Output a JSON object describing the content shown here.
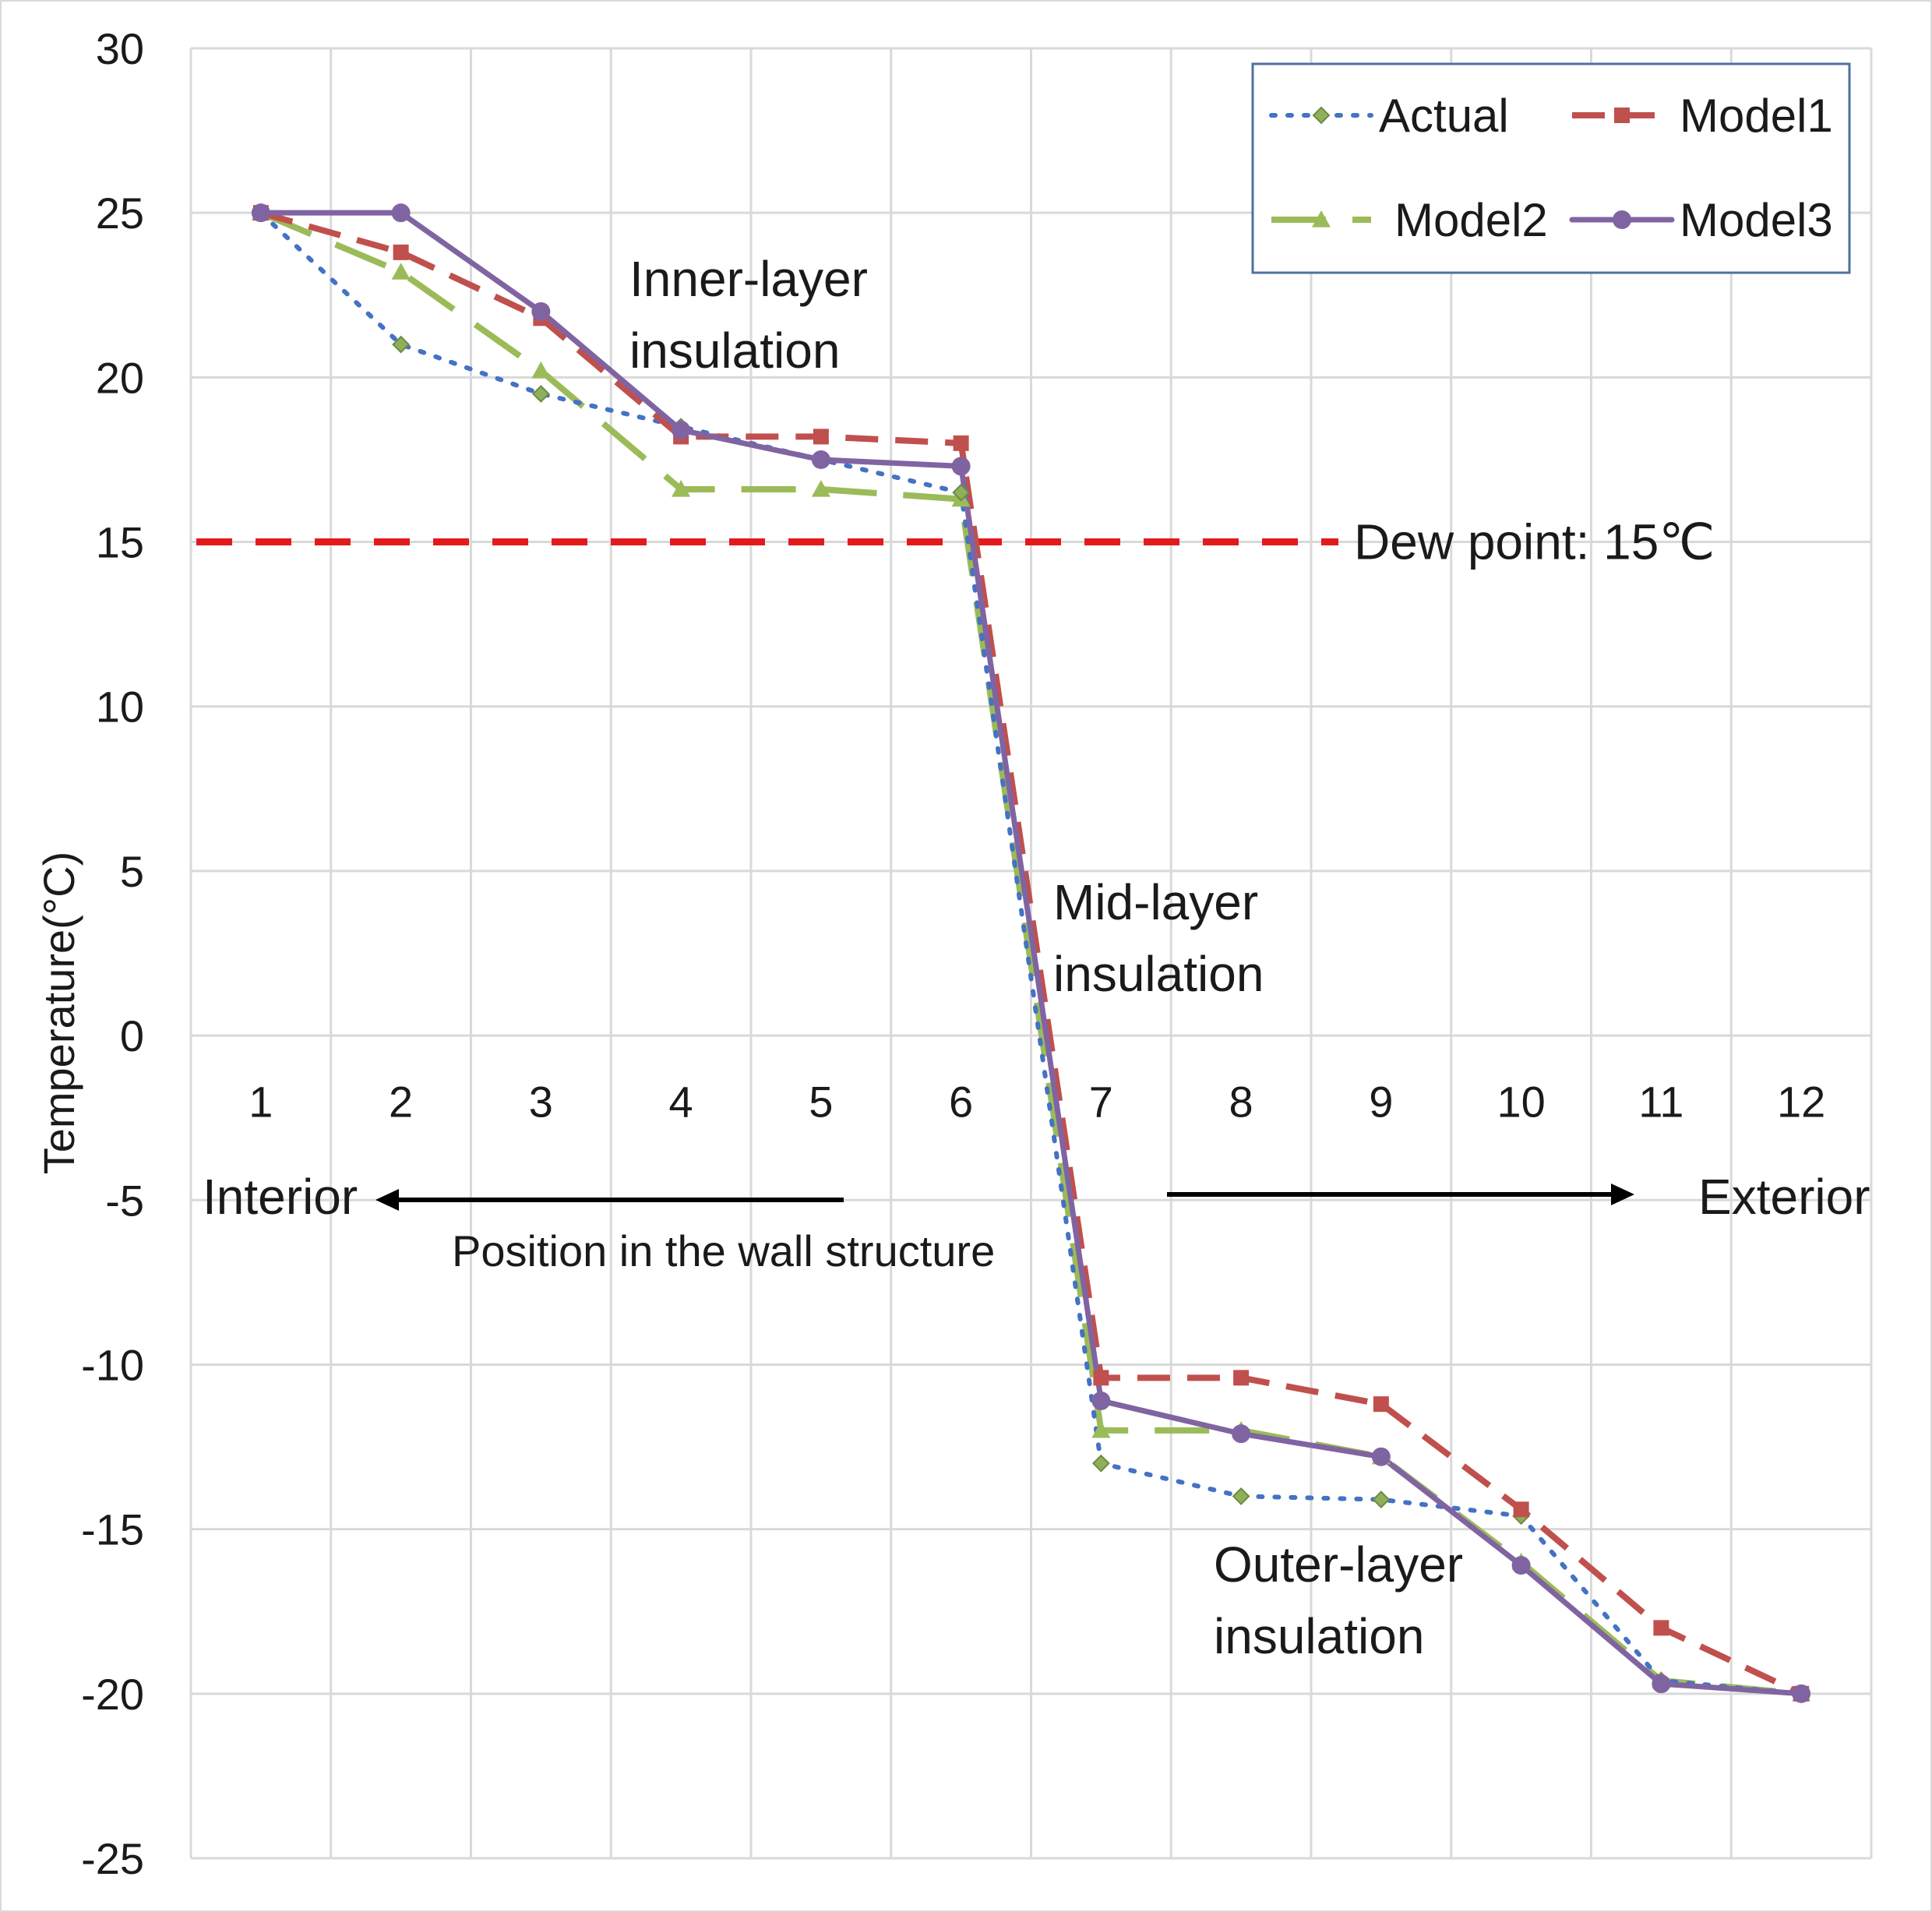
{
  "chart_data": {
    "type": "line",
    "ylabel": "Temperature(°C)",
    "xlabel": "Position in the wall structure",
    "ylim": [
      -25,
      30
    ],
    "y_ticks": [
      30,
      25,
      20,
      15,
      10,
      5,
      0,
      -5,
      -10,
      -15,
      -20,
      -25
    ],
    "y_tick_labels": [
      "30",
      "25",
      "20",
      "15",
      "10",
      "5",
      "0",
      "-5",
      "-10",
      "-15",
      "-20",
      "-25"
    ],
    "x": [
      1,
      2,
      3,
      4,
      5,
      6,
      7,
      8,
      9,
      10,
      11,
      12
    ],
    "x_tick_labels": [
      "1",
      "2",
      "3",
      "4",
      "5",
      "6",
      "7",
      "8",
      "9",
      "10",
      "11",
      "12"
    ],
    "grid": true,
    "legend_position": "top-right",
    "series": [
      {
        "name": "Actual",
        "color": "#4472C4",
        "marker_color": "#8FB05A",
        "line_style": "dotted",
        "marker": "diamond",
        "values": [
          25.0,
          21.0,
          19.5,
          18.5,
          17.5,
          16.5,
          -13.0,
          -14.0,
          -14.1,
          -14.6,
          -19.6,
          -20.0
        ]
      },
      {
        "name": "Model1",
        "color": "#C0504D",
        "line_style": "dashed",
        "marker": "square",
        "values": [
          25.0,
          23.8,
          21.8,
          18.2,
          18.2,
          18.0,
          -10.4,
          -10.4,
          -11.2,
          -14.4,
          -18.0,
          -20.0
        ]
      },
      {
        "name": "Model2",
        "color": "#9BBB59",
        "line_style": "long-dash",
        "marker": "triangle",
        "values": [
          25.0,
          23.2,
          20.2,
          16.6,
          16.6,
          16.3,
          -12.0,
          -12.0,
          -12.8,
          -16.0,
          -19.6,
          -20.0
        ]
      },
      {
        "name": "Model3",
        "color": "#8064A2",
        "line_style": "solid",
        "marker": "circle",
        "values": [
          25.0,
          25.0,
          22.0,
          18.4,
          17.5,
          17.3,
          -11.1,
          -12.1,
          -12.8,
          -16.1,
          -19.7,
          -20.0
        ]
      }
    ],
    "reference_line": {
      "value": 15,
      "label": "Dew point:  15℃",
      "color": "#E31A1C"
    },
    "annotations": {
      "inner": [
        "Inner-layer",
        "insulation"
      ],
      "mid": [
        "Mid-layer",
        "insulation"
      ],
      "outer": [
        "Outer-layer",
        "insulation"
      ],
      "interior": "Interior",
      "exterior": "Exterior"
    }
  }
}
